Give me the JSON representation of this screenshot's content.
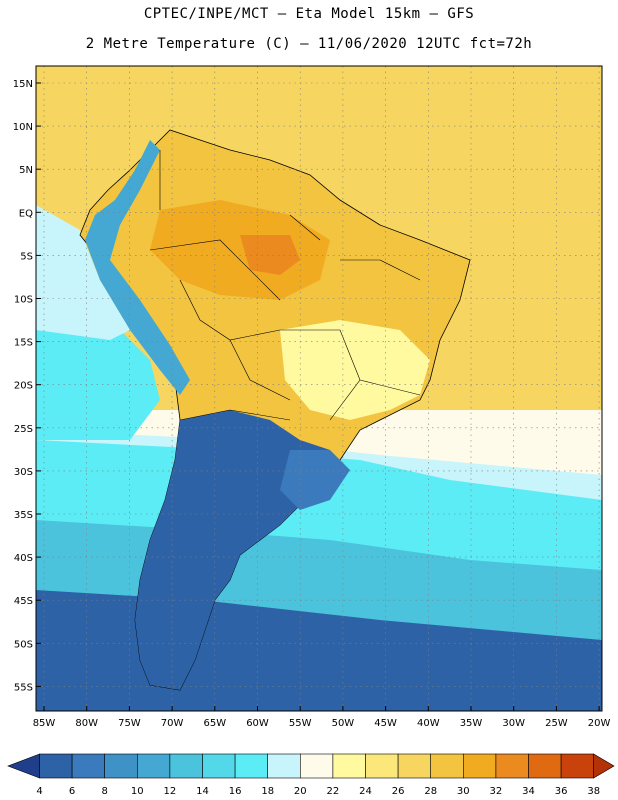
{
  "header": {
    "line1": "CPTEC/INPE/MCT –  Eta Model 15km – GFS",
    "line2": "2 Metre Temperature (C) – 11/06/2020 12UTC fct=72h"
  },
  "map": {
    "region": "South America",
    "lat_labels": [
      "15N",
      "10N",
      "5N",
      "EQ",
      "5S",
      "10S",
      "15S",
      "20S",
      "25S",
      "30S",
      "35S",
      "40S",
      "45S",
      "50S",
      "55S"
    ],
    "lon_labels": [
      "85W",
      "80W",
      "75W",
      "70W",
      "65W",
      "60W",
      "55W",
      "50W",
      "45W",
      "40W",
      "35W",
      "30W",
      "25W",
      "20W"
    ]
  },
  "colorbar": {
    "ticks": [
      "4",
      "6",
      "8",
      "10",
      "12",
      "14",
      "16",
      "18",
      "20",
      "22",
      "24",
      "26",
      "28",
      "30",
      "32",
      "34",
      "36",
      "38"
    ],
    "colors": [
      "#2e62a6",
      "#3b7bbd",
      "#3f92c6",
      "#44a8d2",
      "#4cc3dc",
      "#52d8e8",
      "#5cecf5",
      "#c8f4fb",
      "#fffbea",
      "#fff9a0",
      "#fbe77a",
      "#f6d660",
      "#f2c440",
      "#f0ab20",
      "#ea8a1f",
      "#e06a12",
      "#c9410b"
    ],
    "under_color": "#1f3f8a",
    "over_color": "#b33208"
  },
  "palette": {
    "ocean_cold": "#2e62a6",
    "ocean_mid": "#4cc3dc",
    "ocean_warm": "#5cecf5",
    "ocean_pale": "#c8f4fb",
    "tropic_ocean": "#f6d660",
    "north_land": "#f2c440",
    "amazon_hot": "#f0ab20",
    "plateau": "#fff9a0",
    "south_cone": "#2e62a6",
    "andes_cool": "#44a8d2",
    "border": "#000000"
  }
}
